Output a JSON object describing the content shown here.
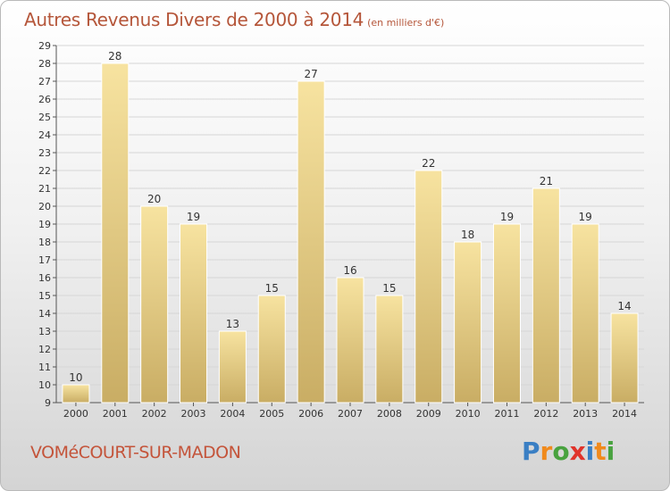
{
  "title": "Autres Revenus Divers de 2000 à 2014",
  "subtitle": "(en milliers d'€)",
  "commune": "VOMéCOURT-SUR-MADON",
  "brand": {
    "letters": [
      "P",
      "r",
      "o",
      "x",
      "i",
      "t",
      "i"
    ],
    "colors": [
      "#3a7fc4",
      "#f08a1c",
      "#48a23f",
      "#e0332a",
      "#3a7fc4",
      "#f08a1c",
      "#48a23f"
    ]
  },
  "colors": {
    "bar_light": "#f7e3a0",
    "bar_dark": "#c9ad64",
    "grid": "#d6d6d6",
    "axis_text": "#333333",
    "title": "#b5563a"
  },
  "chart_data": {
    "type": "bar",
    "categories": [
      "2000",
      "2001",
      "2002",
      "2003",
      "2004",
      "2005",
      "2006",
      "2007",
      "2008",
      "2009",
      "2010",
      "2011",
      "2012",
      "2013",
      "2014"
    ],
    "values": [
      10,
      28,
      20,
      19,
      13,
      15,
      27,
      16,
      15,
      22,
      18,
      19,
      21,
      19,
      14
    ],
    "ylim": [
      9,
      29
    ],
    "yticks": [
      9,
      10,
      11,
      12,
      13,
      14,
      15,
      16,
      17,
      18,
      19,
      20,
      21,
      22,
      23,
      24,
      25,
      26,
      27,
      28,
      29
    ],
    "grid": true,
    "legend": "none"
  }
}
